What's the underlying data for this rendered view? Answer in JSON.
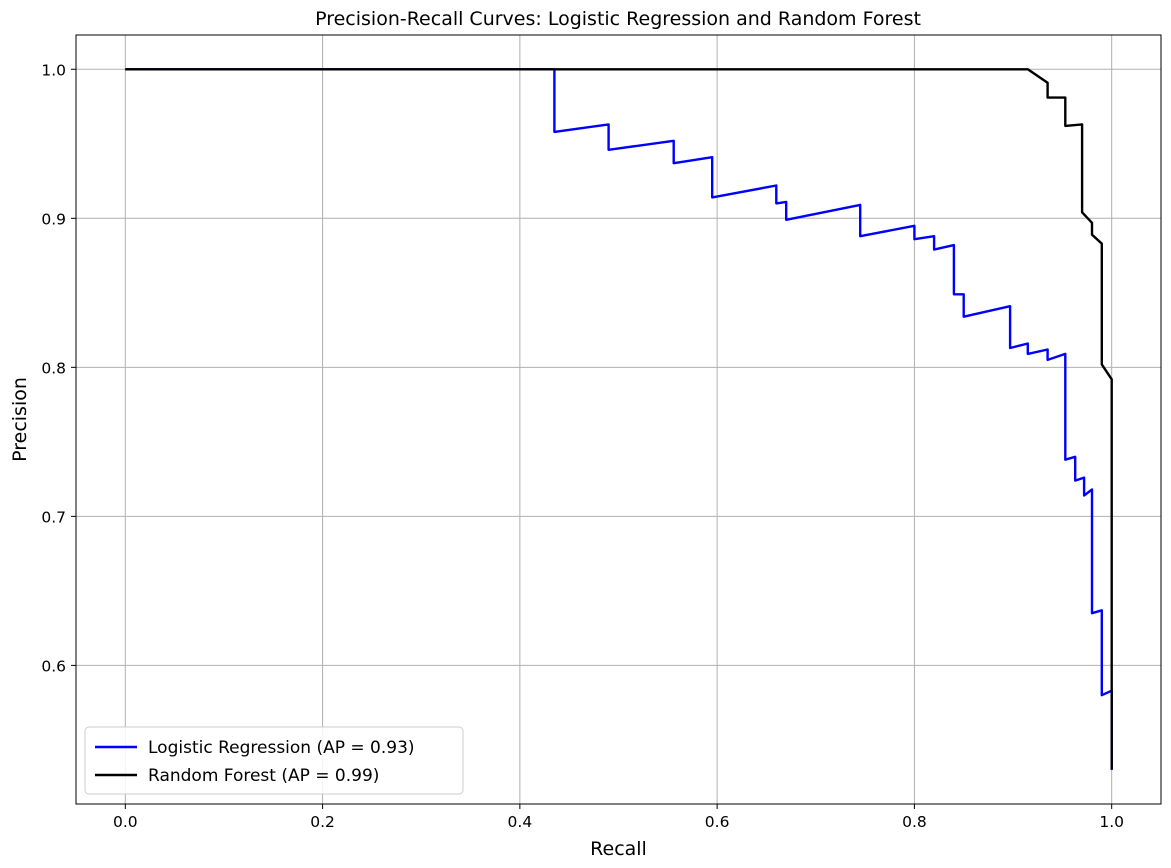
{
  "chart_data": {
    "type": "line",
    "title": "Precision-Recall Curves: Logistic Regression and Random Forest",
    "xlabel": "Recall",
    "ylabel": "Precision",
    "xlim": [
      -0.05,
      1.05
    ],
    "ylim": [
      0.507,
      1.023
    ],
    "xticks": [
      "0.0",
      "0.2",
      "0.4",
      "0.6",
      "0.8",
      "1.0"
    ],
    "yticks": [
      "0.6",
      "0.7",
      "0.8",
      "0.9",
      "1.0"
    ],
    "grid": true,
    "legend_position": "lower-left",
    "series": [
      {
        "name": "Logistic Regression (AP = 0.93)",
        "color": "#0000ff",
        "x": [
          0.0,
          0.435,
          0.435,
          0.49,
          0.49,
          0.556,
          0.556,
          0.595,
          0.595,
          0.66,
          0.66,
          0.67,
          0.67,
          0.745,
          0.745,
          0.8,
          0.8,
          0.82,
          0.82,
          0.84,
          0.84,
          0.85,
          0.85,
          0.897,
          0.897,
          0.915,
          0.915,
          0.935,
          0.935,
          0.953,
          0.953,
          0.963,
          0.963,
          0.972,
          0.972,
          0.98,
          0.98,
          0.99,
          0.99,
          1.0,
          1.0
        ],
        "y": [
          1.0,
          1.0,
          0.958,
          0.963,
          0.946,
          0.952,
          0.937,
          0.941,
          0.914,
          0.922,
          0.91,
          0.911,
          0.899,
          0.909,
          0.888,
          0.895,
          0.886,
          0.888,
          0.879,
          0.882,
          0.849,
          0.849,
          0.834,
          0.841,
          0.813,
          0.816,
          0.809,
          0.812,
          0.805,
          0.809,
          0.738,
          0.74,
          0.724,
          0.726,
          0.714,
          0.718,
          0.635,
          0.637,
          0.58,
          0.583,
          0.53
        ]
      },
      {
        "name": "Random Forest (AP = 0.99)",
        "color": "#000000",
        "x": [
          0.0,
          0.915,
          0.935,
          0.935,
          0.953,
          0.953,
          0.97,
          0.97,
          0.98,
          0.98,
          0.99,
          0.99,
          1.0,
          1.0
        ],
        "y": [
          1.0,
          1.0,
          0.991,
          0.981,
          0.981,
          0.962,
          0.963,
          0.904,
          0.897,
          0.889,
          0.883,
          0.802,
          0.792,
          0.53
        ]
      }
    ]
  }
}
